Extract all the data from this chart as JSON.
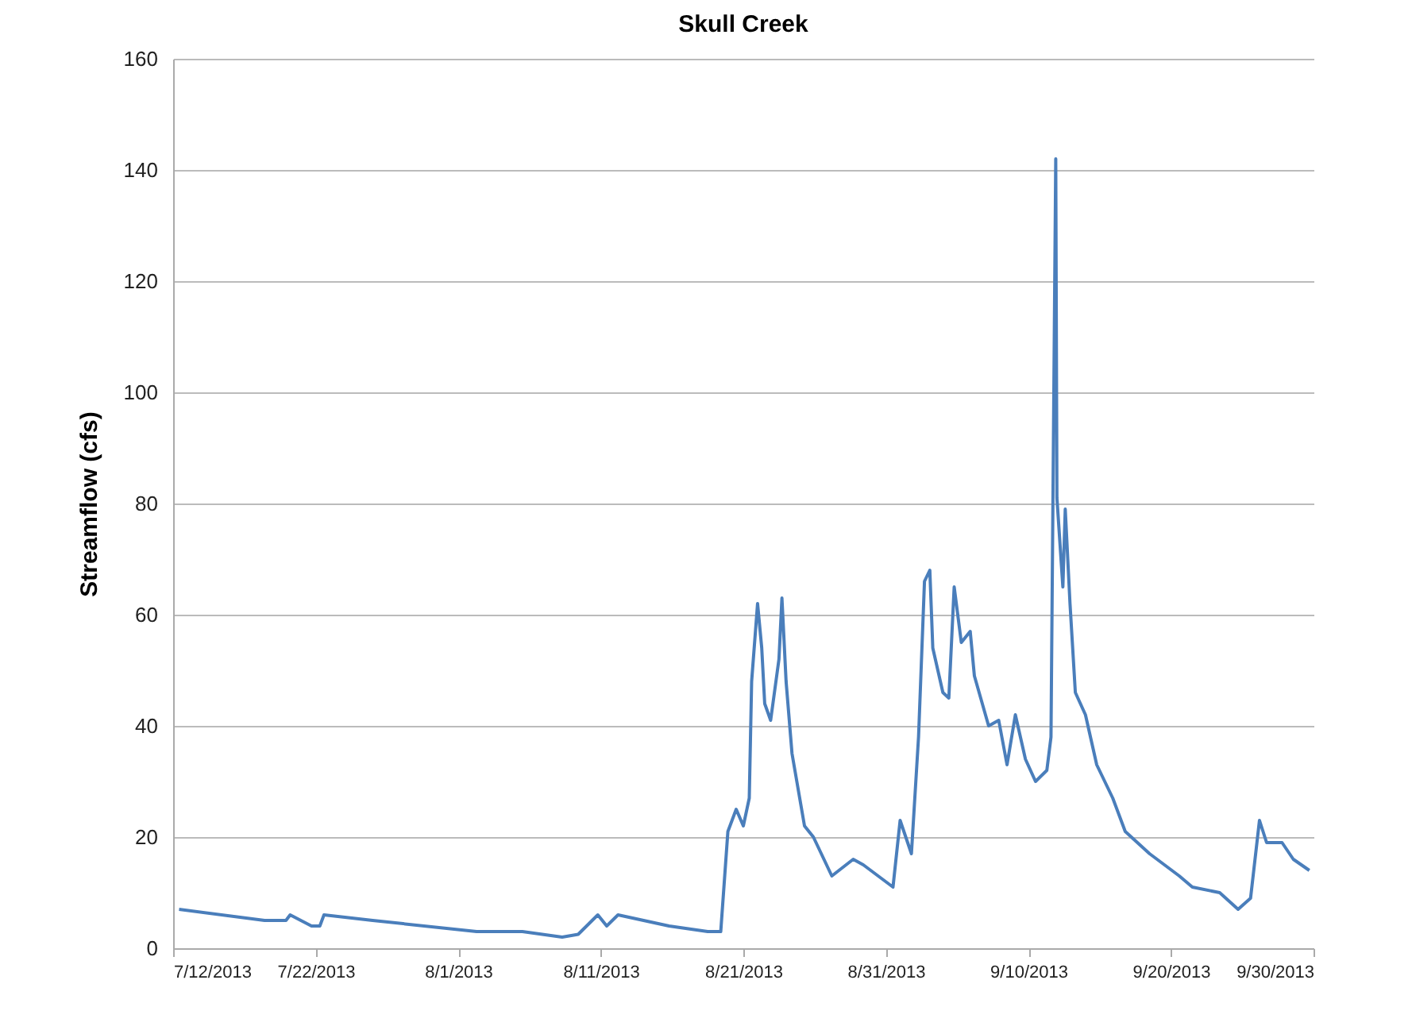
{
  "chart_data": {
    "type": "line",
    "title": "Skull Creek",
    "ylabel": "Streamflow (cfs)",
    "x": [
      "2013-07-12T10:00",
      "2013-07-18T10:00",
      "2013-07-19T22:00",
      "2013-07-20T05:00",
      "2013-07-21T17:00",
      "2013-07-22T07:00",
      "2013-07-22T14:00",
      "2013-07-26T00:00",
      "2013-08-02T07:00",
      "2013-08-05T12:00",
      "2013-08-08T07:00",
      "2013-08-09T10:00",
      "2013-08-10T19:00",
      "2013-08-11T10:00",
      "2013-08-12T05:00",
      "2013-08-15T19:00",
      "2013-08-18T12:00",
      "2013-08-19T10:00",
      "2013-08-19T22:00",
      "2013-08-20T12:00",
      "2013-08-21T00:00",
      "2013-08-21T10:00",
      "2013-08-21T14:00",
      "2013-08-22T00:00",
      "2013-08-22T07:00",
      "2013-08-22T12:00",
      "2013-08-22T22:00",
      "2013-08-23T12:00",
      "2013-08-23T17:00",
      "2013-08-24T00:00",
      "2013-08-24T10:00",
      "2013-08-25T07:00",
      "2013-08-25T22:00",
      "2013-08-27T05:00",
      "2013-08-28T17:00",
      "2013-08-29T10:00",
      "2013-08-31T12:00",
      "2013-09-01T00:00",
      "2013-09-01T19:00",
      "2013-09-02T07:00",
      "2013-09-02T17:00",
      "2013-09-03T02:00",
      "2013-09-03T07:00",
      "2013-09-04T00:00",
      "2013-09-04T10:00",
      "2013-09-04T19:00",
      "2013-09-05T07:00",
      "2013-09-05T22:00",
      "2013-09-06T05:00",
      "2013-09-07T05:00",
      "2013-09-07T22:00",
      "2013-09-08T12:00",
      "2013-09-09T02:00",
      "2013-09-09T19:00",
      "2013-09-10T12:00",
      "2013-09-11T07:00",
      "2013-09-11T14:00",
      "2013-09-11T22:00",
      "2013-09-12T00:00",
      "2013-09-12T10:00",
      "2013-09-12T14:00",
      "2013-09-12T22:00",
      "2013-09-13T07:00",
      "2013-09-14T00:00",
      "2013-09-14T19:00",
      "2013-09-15T22:00",
      "2013-09-16T19:00",
      "2013-09-18T12:00",
      "2013-09-20T14:00",
      "2013-09-21T12:00",
      "2013-09-23T10:00",
      "2013-09-24T17:00",
      "2013-09-25T14:00",
      "2013-09-26T05:00",
      "2013-09-26T17:00",
      "2013-09-27T19:00",
      "2013-09-28T14:00",
      "2013-09-29T17:00"
    ],
    "series": [
      {
        "color": "#4a7ebb",
        "values": [
          7,
          5,
          5,
          6,
          4,
          4,
          6,
          5,
          3,
          3,
          2,
          2.5,
          6,
          4,
          6,
          4,
          3,
          3,
          21,
          25,
          22,
          27,
          48,
          62,
          54,
          44,
          41,
          52,
          63,
          48,
          35,
          22,
          20,
          13,
          16,
          15,
          11,
          23,
          17,
          38,
          66,
          68,
          54,
          46,
          45,
          65,
          55,
          57,
          49,
          40,
          41,
          33,
          42,
          34,
          30,
          32,
          38,
          142,
          81,
          65,
          79,
          62,
          46,
          42,
          33,
          27,
          21,
          17,
          13,
          11,
          10,
          7,
          9,
          23,
          19,
          19,
          16,
          14
        ]
      }
    ],
    "xlim": [
      "2013-07-12",
      "2013-09-30"
    ],
    "xticks": [
      {
        "value": "2013-07-12",
        "label": "7/12/2013"
      },
      {
        "value": "2013-07-22",
        "label": "7/22/2013"
      },
      {
        "value": "2013-08-01",
        "label": "8/1/2013"
      },
      {
        "value": "2013-08-11",
        "label": "8/11/2013"
      },
      {
        "value": "2013-08-21",
        "label": "8/21/2013"
      },
      {
        "value": "2013-08-31",
        "label": "8/31/2013"
      },
      {
        "value": "2013-09-10",
        "label": "9/10/2013"
      },
      {
        "value": "2013-09-20",
        "label": "9/20/2013"
      },
      {
        "value": "2013-09-30",
        "label": "9/30/2013"
      }
    ],
    "ylim": [
      0,
      160
    ],
    "yticks": [
      0,
      20,
      40,
      60,
      80,
      100,
      120,
      140,
      160
    ],
    "grid": "y",
    "legend": false
  }
}
